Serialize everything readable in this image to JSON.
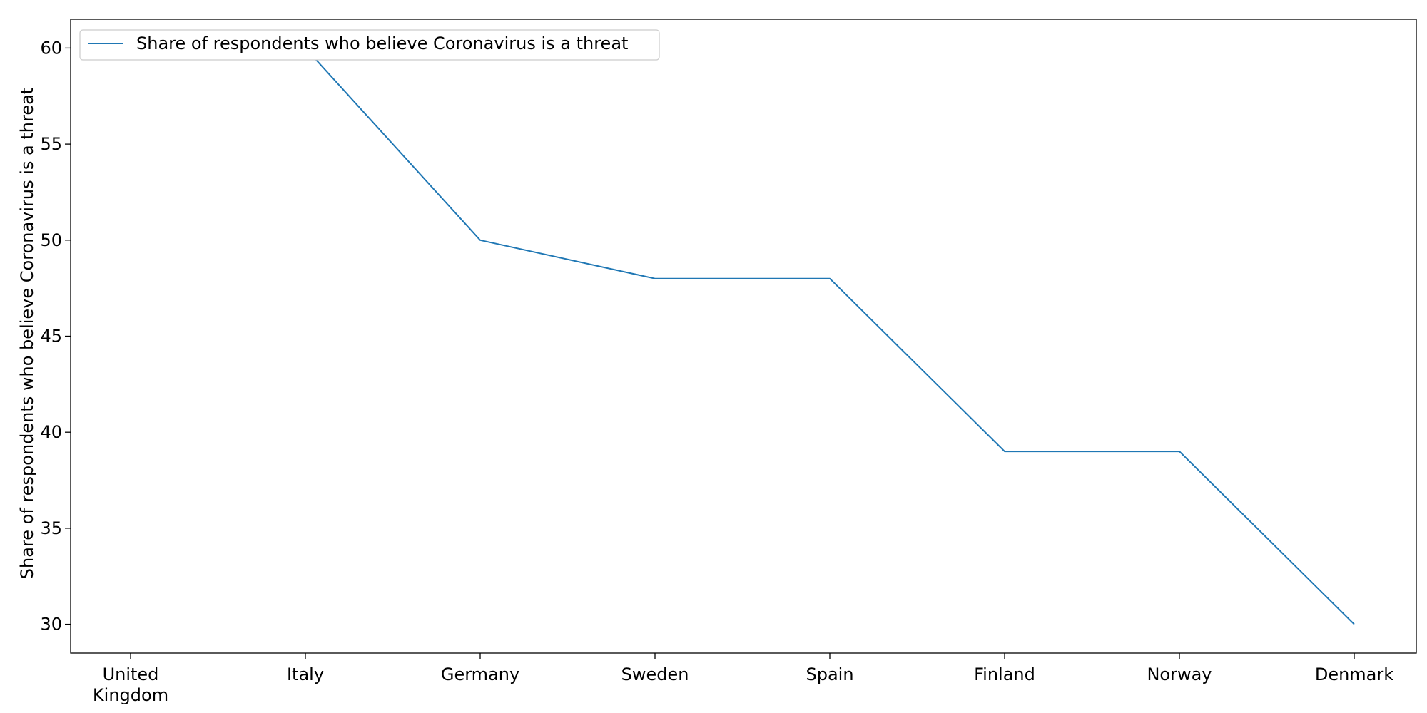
{
  "chart_data": {
    "type": "line",
    "title": "",
    "xlabel": "",
    "ylabel": "Share of respondents who believe Coronavirus is a threat",
    "categories": [
      "United\nKingdom",
      "Italy",
      "Germany",
      "Sweden",
      "Spain",
      "Finland",
      "Norway",
      "Denmark"
    ],
    "series": [
      {
        "name": "Share of respondents who believe Coronavirus is a threat",
        "values": [
          60,
          60,
          50,
          48,
          48,
          39,
          39,
          30
        ],
        "color": "#1f77b4"
      }
    ],
    "ylim": [
      28.5,
      61.5
    ],
    "yticks": [
      30,
      35,
      40,
      45,
      50,
      55,
      60
    ],
    "grid": false,
    "legend_position": "top-left"
  }
}
